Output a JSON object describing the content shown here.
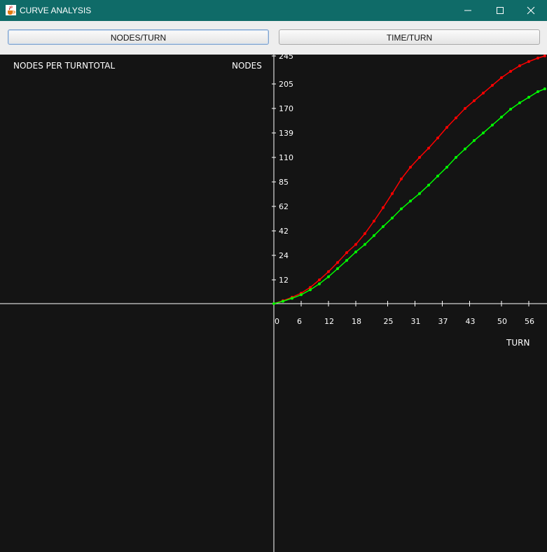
{
  "window": {
    "title": "CURVE ANALYSIS",
    "icons": {
      "app": "java-cup-icon",
      "minimize": "minimize-icon",
      "maximize": "maximize-icon",
      "close": "close-icon"
    }
  },
  "toolbar": {
    "nodes_turn_label": "NODES/TURN",
    "time_turn_label": "TIME/TURN"
  },
  "plot": {
    "left_label": "NODES PER TURNTOTAL",
    "y_axis_label": "NODES",
    "x_axis_label": "TURN"
  },
  "chart_data": {
    "type": "line",
    "xlabel": "TURN",
    "ylabel": "NODES",
    "x_ticks": [
      "0",
      "6",
      "12",
      "18",
      "25",
      "31",
      "37",
      "43",
      "50",
      "56"
    ],
    "y_ticks": [
      "12",
      "24",
      "42",
      "62",
      "85",
      "110",
      "139",
      "170",
      "205",
      "245"
    ],
    "grid": false,
    "series": [
      {
        "color": "#ff0000",
        "x": [
          0,
          2,
          4,
          6,
          8,
          10,
          12,
          14,
          16,
          18,
          20,
          22,
          24,
          26,
          28,
          30,
          32,
          34,
          36,
          38,
          40,
          42,
          44,
          46,
          48,
          50,
          52,
          54,
          56,
          58,
          59.5
        ],
        "values": [
          0,
          1.5,
          3.2,
          5.3,
          8.2,
          12,
          16,
          20.5,
          26,
          32,
          40,
          50,
          61,
          74,
          88,
          100,
          110,
          121,
          133,
          146,
          158,
          170,
          181,
          192,
          203,
          214,
          223,
          231,
          237,
          242,
          245
        ]
      },
      {
        "color": "#00ff00",
        "x": [
          0,
          2,
          4,
          6,
          8,
          10,
          12,
          14,
          16,
          18,
          20,
          22,
          24,
          26,
          28,
          30,
          32,
          34,
          36,
          38,
          40,
          42,
          44,
          46,
          48,
          50,
          52,
          54,
          56,
          58,
          59.5
        ],
        "values": [
          0,
          1.2,
          2.7,
          4.5,
          7,
          10,
          13.5,
          17.5,
          21.5,
          26.5,
          32,
          38.5,
          45.5,
          52.5,
          60,
          67,
          74,
          82,
          91,
          100,
          110,
          120,
          130,
          139,
          149,
          159,
          169,
          178,
          186,
          194,
          198
        ]
      }
    ]
  }
}
